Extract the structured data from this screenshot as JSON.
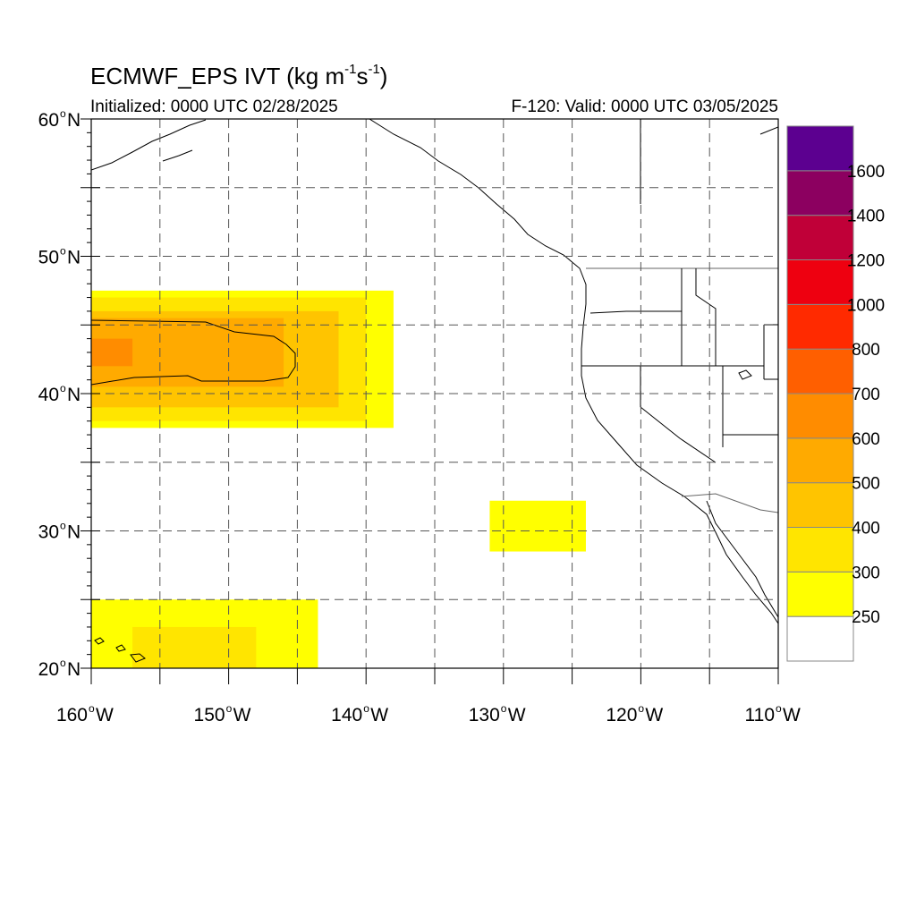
{
  "title": {
    "text": "ECMWF_EPS IVT (kg m",
    "exp1": "-1",
    "mid": "s",
    "exp2": "-1",
    "end": ")"
  },
  "init_label": "Initialized: 0000 UTC 02/28/2025",
  "valid_label": "F-120: Valid: 0000 UTC 03/05/2025",
  "axes": {
    "lat_ticks": [
      {
        "value": 60,
        "label": "60"
      },
      {
        "value": 50,
        "label": "50"
      },
      {
        "value": 40,
        "label": "40"
      },
      {
        "value": 30,
        "label": "30"
      },
      {
        "value": 20,
        "label": "20"
      }
    ],
    "lat_suffix": "N",
    "lon_ticks": [
      {
        "value": -160,
        "label": "160"
      },
      {
        "value": -150,
        "label": "150"
      },
      {
        "value": -140,
        "label": "140"
      },
      {
        "value": -130,
        "label": "130"
      },
      {
        "value": -120,
        "label": "120"
      },
      {
        "value": -110,
        "label": "110"
      }
    ],
    "lon_suffix": "W",
    "degree_symbol": "o",
    "lon_range": [
      -160,
      -110
    ],
    "lat_range": [
      20,
      60
    ],
    "grid_spacing_deg": 5
  },
  "colorbar": {
    "levels": [
      250,
      300,
      400,
      500,
      600,
      700,
      800,
      1000,
      1200,
      1400,
      1600
    ],
    "labels": [
      "250",
      "300",
      "400",
      "500",
      "600",
      "700",
      "800",
      "1000",
      "1200",
      "1400",
      "1600"
    ],
    "colors": [
      "#ffffff",
      "#ffff00",
      "#ffe500",
      "#ffc400",
      "#ffaa00",
      "#ff8c00",
      "#ff5f00",
      "#ff2a00",
      "#ee0010",
      "#c00038",
      "#8c0060",
      "#5c0090"
    ]
  },
  "chart_data": {
    "type": "heatmap",
    "field": "IVT",
    "units": "kg m-1 s-1",
    "regions": [
      {
        "name": "",
        "level": 250,
        "lon": [
          -160,
          -138
        ],
        "lat": [
          37.5,
          47.5
        ]
      },
      {
        "name": "",
        "level": 300,
        "lon": [
          -160,
          -140
        ],
        "lat": [
          38,
          47
        ]
      },
      {
        "name": "",
        "level": 400,
        "lon": [
          -160,
          -142
        ],
        "lat": [
          39,
          46
        ]
      },
      {
        "name": "",
        "level": 500,
        "lon": [
          -160,
          -146
        ],
        "lat": [
          40.5,
          45.5
        ]
      },
      {
        "name": "",
        "level": 600,
        "lon": [
          -160,
          -157
        ],
        "lat": [
          42,
          44
        ]
      },
      {
        "name": "",
        "level": 250,
        "lon": [
          -131,
          -124
        ],
        "lat": [
          28.5,
          32.2
        ]
      },
      {
        "name": "",
        "level": 250,
        "lon": [
          -160,
          -143.5
        ],
        "lat": [
          20,
          25
        ]
      },
      {
        "name": "",
        "level": 300,
        "lon": [
          -157,
          -148
        ],
        "lat": [
          20,
          23
        ]
      }
    ]
  }
}
